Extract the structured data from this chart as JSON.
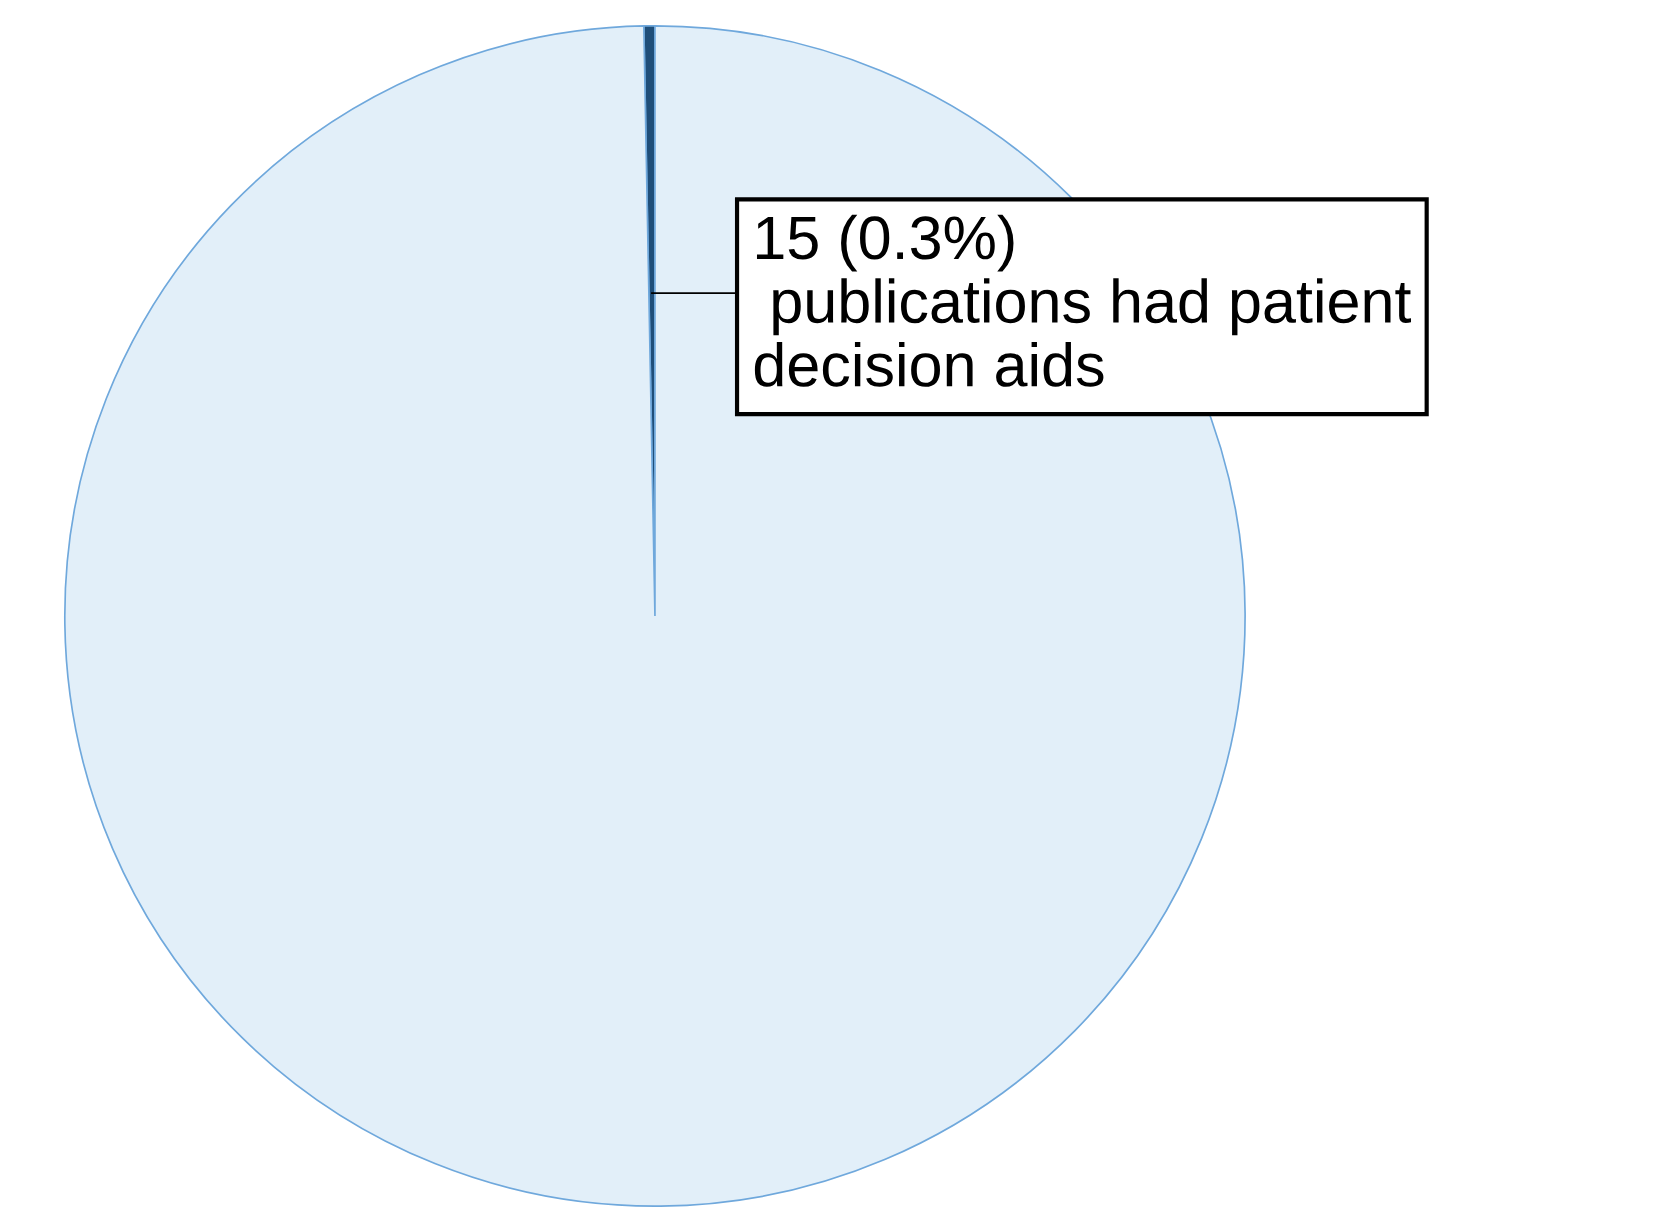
{
  "chart_data": {
    "type": "pie",
    "categories": [
      "publications had patient\ndecision aids",
      null
    ],
    "values": [
      0.3,
      99.7
    ],
    "value_labels": [
      "15 (0.3%)",
      null
    ],
    "colors": [
      "#1f4e79",
      "#e2eff9"
    ]
  }
}
